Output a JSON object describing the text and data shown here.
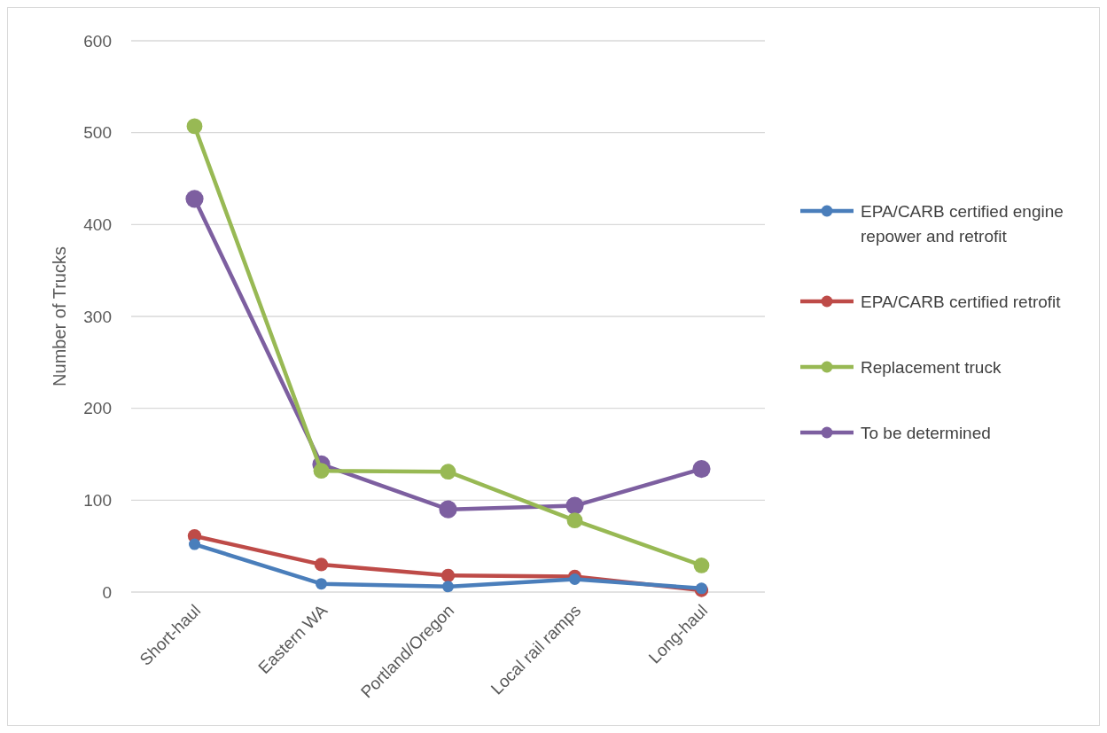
{
  "chart_data": {
    "type": "line",
    "ylabel": "Number of Trucks",
    "categories": [
      "Short-haul",
      "Eastern WA",
      "Portland/Oregon",
      "Local rail ramps",
      "Long-haul"
    ],
    "series": [
      {
        "name": "EPA/CARB certified engine repower and retrofit",
        "color": "#4a7ebb",
        "values": [
          52,
          9,
          6,
          14,
          4
        ]
      },
      {
        "name": "EPA/CARB certified retrofit",
        "color": "#be4b48",
        "values": [
          61,
          30,
          18,
          17,
          2
        ]
      },
      {
        "name": "Replacement truck",
        "color": "#98b954",
        "values": [
          507,
          132,
          131,
          78,
          29
        ]
      },
      {
        "name": "To be determined",
        "color": "#7d5fa0",
        "values": [
          428,
          139,
          90,
          94,
          134
        ]
      }
    ],
    "ylim": [
      0,
      600
    ],
    "yticks": [
      0,
      100,
      200,
      300,
      400,
      500,
      600
    ],
    "grid": "y",
    "legend": "right",
    "marker": "circle",
    "line_style": "solid"
  }
}
